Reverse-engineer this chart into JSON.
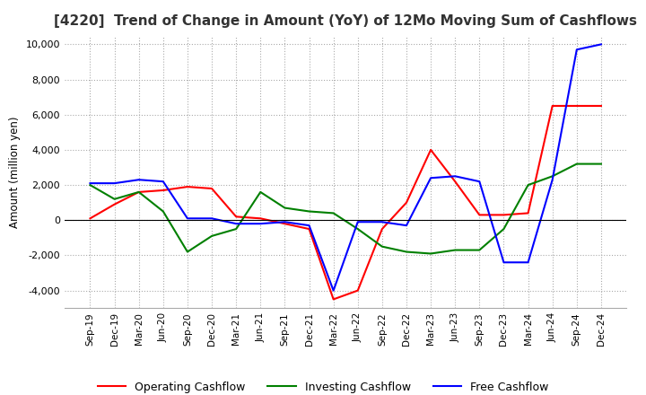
{
  "title": "[4220]  Trend of Change in Amount (YoY) of 12Mo Moving Sum of Cashflows",
  "ylabel": "Amount (million yen)",
  "ylim": [
    -5000,
    10500
  ],
  "yticks": [
    -4000,
    -2000,
    0,
    2000,
    4000,
    6000,
    8000,
    10000
  ],
  "x_labels": [
    "Sep-19",
    "Dec-19",
    "Mar-20",
    "Jun-20",
    "Sep-20",
    "Dec-20",
    "Mar-21",
    "Jun-21",
    "Sep-21",
    "Dec-21",
    "Mar-22",
    "Jun-22",
    "Sep-22",
    "Dec-22",
    "Mar-23",
    "Jun-23",
    "Sep-23",
    "Dec-23",
    "Mar-24",
    "Jun-24",
    "Sep-24",
    "Dec-24"
  ],
  "operating": [
    100,
    900,
    1600,
    1700,
    1900,
    1800,
    200,
    100,
    -200,
    -500,
    -4500,
    -4000,
    -500,
    1000,
    4000,
    2200,
    300,
    300,
    400,
    6500,
    6500,
    6500
  ],
  "investing": [
    2000,
    1200,
    1600,
    500,
    -1800,
    -900,
    -500,
    1600,
    700,
    500,
    400,
    -500,
    -1500,
    -1800,
    -1900,
    -1700,
    -1700,
    -500,
    2000,
    2500,
    3200,
    3200
  ],
  "free": [
    2100,
    2100,
    2300,
    2200,
    100,
    100,
    -200,
    -200,
    -100,
    -300,
    -4000,
    -100,
    -100,
    -300,
    2400,
    2500,
    2200,
    -2400,
    -2400,
    2300,
    9700,
    10000
  ],
  "operating_color": "#ff0000",
  "investing_color": "#008000",
  "free_color": "#0000ff",
  "background_color": "#ffffff",
  "grid_color": "#aaaaaa",
  "title_fontsize": 11,
  "legend_labels": [
    "Operating Cashflow",
    "Investing Cashflow",
    "Free Cashflow"
  ]
}
